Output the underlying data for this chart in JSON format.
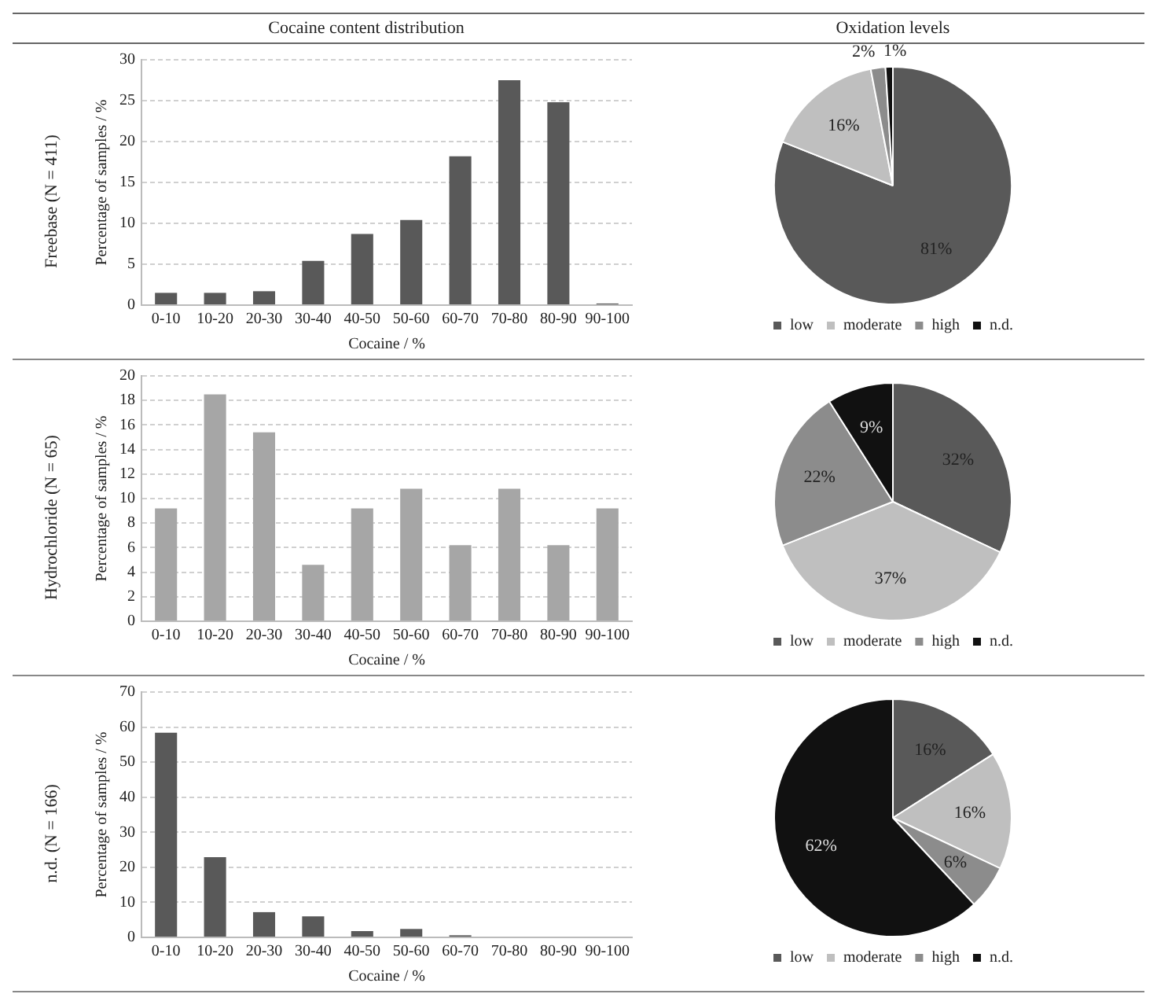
{
  "chart_data": [
    {
      "type": "bar",
      "title": "Cocaine content distribution",
      "subtitle": "Freebase (N = 411)",
      "xlabel": "Cocaine / %",
      "ylabel": "Percentage of samples / %",
      "categories": [
        "0-10",
        "10-20",
        "20-30",
        "30-40",
        "40-50",
        "50-60",
        "60-70",
        "70-80",
        "80-90",
        "90-100"
      ],
      "values": [
        1.5,
        1.5,
        1.7,
        5.4,
        8.7,
        10.4,
        18.2,
        27.5,
        24.8,
        0.2
      ],
      "color": "#595959",
      "ylim": [
        0,
        30
      ],
      "yticks": [
        0,
        5,
        10,
        15,
        20,
        25,
        30
      ],
      "grid": "y",
      "legend": false
    },
    {
      "type": "pie",
      "title": "Oxidation levels",
      "categories": [
        "low",
        "moderate",
        "high",
        "n.d."
      ],
      "values": [
        81,
        16,
        2,
        1
      ],
      "colors": [
        "#595959",
        "#bfbfbf",
        "#8c8c8c",
        "#111111"
      ],
      "value_labels": [
        "81%",
        "16%",
        "2%",
        "1%"
      ],
      "legend": "bottom"
    },
    {
      "type": "bar",
      "subtitle": "Hydrochloride (N = 65)",
      "xlabel": "Cocaine / %",
      "ylabel": "Percentage of samples / %",
      "categories": [
        "0-10",
        "10-20",
        "20-30",
        "30-40",
        "40-50",
        "50-60",
        "60-70",
        "70-80",
        "80-90",
        "90-100"
      ],
      "values": [
        9.2,
        18.5,
        15.4,
        4.6,
        9.2,
        10.8,
        6.2,
        10.8,
        6.2,
        9.2
      ],
      "color": "#a6a6a6",
      "ylim": [
        0,
        20
      ],
      "yticks": [
        0,
        2,
        4,
        6,
        8,
        10,
        12,
        14,
        16,
        18,
        20
      ],
      "grid": "y",
      "legend": false
    },
    {
      "type": "pie",
      "categories": [
        "low",
        "moderate",
        "high",
        "n.d."
      ],
      "values": [
        32,
        37,
        22,
        9
      ],
      "colors": [
        "#595959",
        "#bfbfbf",
        "#8c8c8c",
        "#111111"
      ],
      "value_labels": [
        "32%",
        "37%",
        "22%",
        "9%"
      ],
      "legend": "bottom"
    },
    {
      "type": "bar",
      "subtitle": "n.d. (N = 166)",
      "xlabel": "Cocaine / %",
      "ylabel": "Percentage of samples / %",
      "categories": [
        "0-10",
        "10-20",
        "20-30",
        "30-40",
        "40-50",
        "50-60",
        "60-70",
        "70-80",
        "80-90",
        "90-100"
      ],
      "values": [
        58.4,
        22.9,
        7.2,
        6.0,
        1.8,
        2.4,
        0.6,
        0,
        0,
        0
      ],
      "color": "#595959",
      "ylim": [
        0,
        70
      ],
      "yticks": [
        0,
        10,
        20,
        30,
        40,
        50,
        60,
        70
      ],
      "grid": "y",
      "legend": false
    },
    {
      "type": "pie",
      "categories": [
        "low",
        "moderate",
        "high",
        "n.d."
      ],
      "values": [
        16,
        16,
        6,
        62
      ],
      "colors": [
        "#595959",
        "#bfbfbf",
        "#8c8c8c",
        "#111111"
      ],
      "value_labels": [
        "16%",
        "16%",
        "6%",
        "62%"
      ],
      "legend": "bottom"
    }
  ]
}
